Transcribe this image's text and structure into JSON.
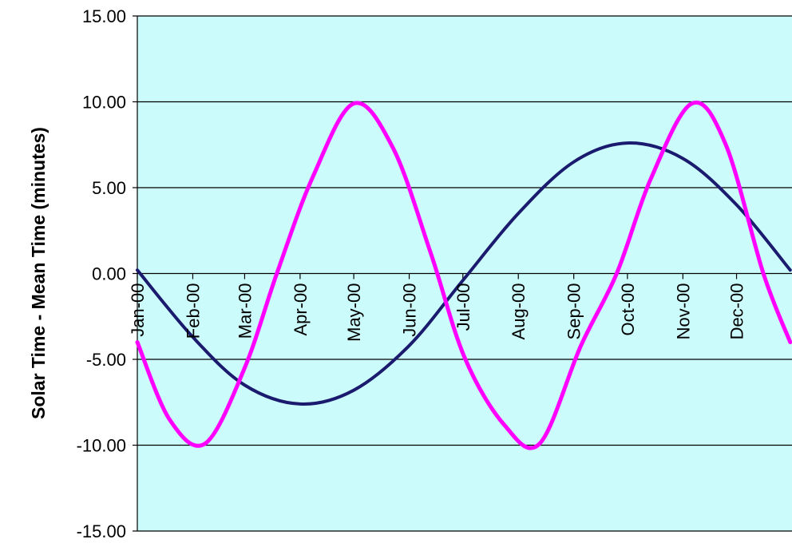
{
  "chart_data": {
    "type": "line",
    "title": "",
    "xlabel": "",
    "ylabel": "Solar Time - Mean Time (minutes)",
    "ylim": [
      -15,
      15
    ],
    "y_ticks": [
      "15.00",
      "10.00",
      "5.00",
      "0.00",
      "-5.00",
      "-10.00",
      "-15.00"
    ],
    "y_tick_values": [
      15,
      10,
      5,
      0,
      -5,
      -10,
      -15
    ],
    "x_ticks": [
      "Jan-00",
      "Feb-00",
      "Mar-00",
      "Apr-00",
      "May-00",
      "Jun-00",
      "Jul-00",
      "Aug-00",
      "Sep-00",
      "Oct-00",
      "Nov-00",
      "Dec-00"
    ],
    "x_tick_values": [
      "2000-01-01",
      "2000-02-01",
      "2000-03-01",
      "2000-04-01",
      "2000-05-01",
      "2000-06-01",
      "2000-07-01",
      "2000-08-01",
      "2000-09-01",
      "2000-10-01",
      "2000-11-01",
      "2000-12-01"
    ],
    "x_range": [
      "2000-01-01",
      "2000-12-31"
    ],
    "grid": "horizontal",
    "legend": "none",
    "plot_background": "#ccfbfb",
    "series": [
      {
        "color": "#1a1a6e",
        "x": [
          "2000-01-01",
          "2000-02-01",
          "2000-03-01",
          "2000-04-01",
          "2000-05-01",
          "2000-06-01",
          "2000-07-01",
          "2000-08-01",
          "2000-09-01",
          "2000-10-01",
          "2000-11-01",
          "2000-12-01",
          "2000-12-31"
        ],
        "values": [
          0.2,
          -3.7,
          -6.5,
          -7.6,
          -6.8,
          -4.2,
          -0.4,
          3.5,
          6.5,
          7.6,
          6.7,
          4.0,
          0.2
        ]
      },
      {
        "color": "#ff00ff",
        "x": [
          "2000-01-01",
          "2000-01-19",
          "2000-02-08",
          "2000-03-01",
          "2000-03-19",
          "2000-04-08",
          "2000-05-01",
          "2000-05-23",
          "2000-06-13",
          "2000-07-02",
          "2000-07-24",
          "2000-08-13",
          "2000-09-05",
          "2000-09-25",
          "2000-10-14",
          "2000-11-06",
          "2000-11-25",
          "2000-12-16",
          "2000-12-31"
        ],
        "values": [
          -4.0,
          -8.5,
          -9.9,
          -5.5,
          0.0,
          5.6,
          9.9,
          7.3,
          1.2,
          -4.9,
          -8.8,
          -9.9,
          -4.2,
          0.0,
          5.5,
          9.9,
          7.5,
          0.0,
          -4.0
        ]
      }
    ]
  }
}
